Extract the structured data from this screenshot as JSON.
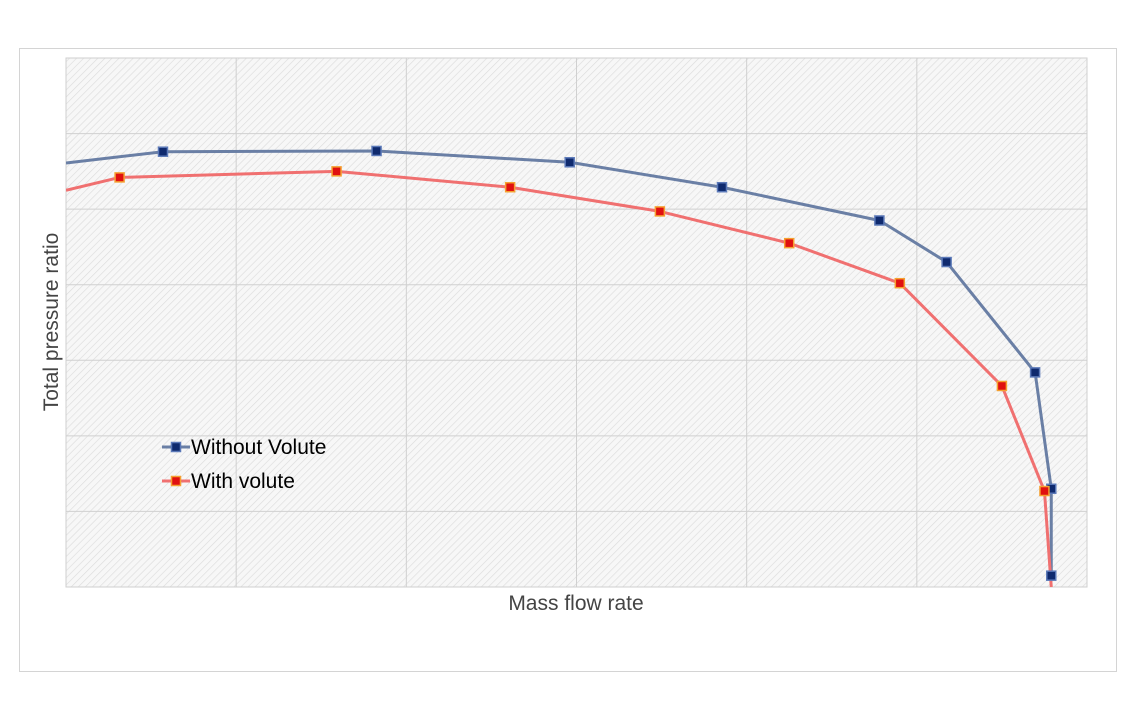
{
  "chart_data": {
    "type": "line",
    "title": "",
    "xlabel": "Mass flow rate",
    "ylabel": "Total pressure ratio",
    "xlim": [
      0,
      12
    ],
    "ylim": [
      0,
      7
    ],
    "grid": true,
    "legend_position": "lower-left",
    "series": [
      {
        "name": "Without Volute",
        "color": "#6a7fa5",
        "marker_fill": "#0f2a6e",
        "marker_edge": "#5a78b8",
        "points": [
          [
            0.0,
            5.61
          ],
          [
            1.14,
            5.76
          ],
          [
            3.65,
            5.77
          ],
          [
            5.92,
            5.62
          ],
          [
            7.71,
            5.29
          ],
          [
            9.56,
            4.85
          ],
          [
            10.35,
            4.3
          ],
          [
            11.39,
            2.84
          ],
          [
            11.58,
            1.3
          ],
          [
            11.58,
            0.15
          ]
        ]
      },
      {
        "name": "With volute",
        "color": "#f07070",
        "marker_fill": "#e01010",
        "marker_edge": "#f5a030",
        "points": [
          [
            0.0,
            5.25
          ],
          [
            0.63,
            5.42
          ],
          [
            3.18,
            5.5
          ],
          [
            5.22,
            5.29
          ],
          [
            6.98,
            4.97
          ],
          [
            8.5,
            4.55
          ],
          [
            9.8,
            4.02
          ],
          [
            11.0,
            2.66
          ],
          [
            11.5,
            1.27
          ],
          [
            11.58,
            0.0
          ]
        ]
      }
    ]
  }
}
